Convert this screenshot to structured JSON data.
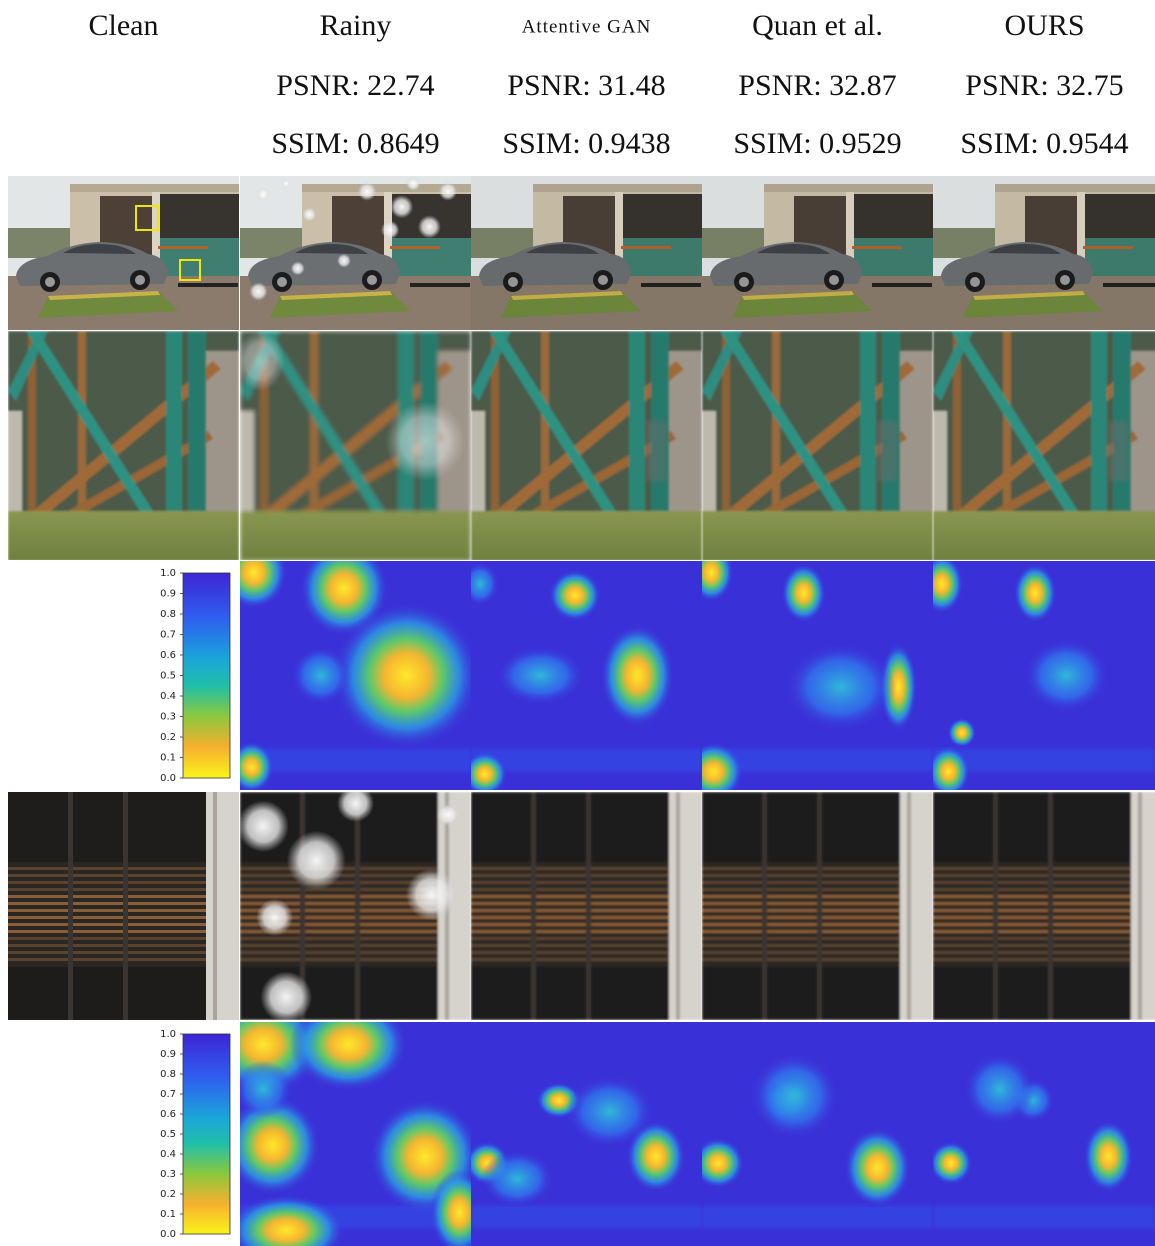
{
  "columns": [
    {
      "name": "Clean"
    },
    {
      "name": "Rainy",
      "psnr": "PSNR: 22.74",
      "ssim": "SSIM: 0.8649"
    },
    {
      "name": "Attentive GAN",
      "psnr": "PSNR: 31.48",
      "ssim": "SSIM: 0.9438"
    },
    {
      "name": "Quan et al.",
      "psnr": "PSNR: 32.87",
      "ssim": "SSIM: 0.9529"
    },
    {
      "name": "OURS",
      "psnr": "PSNR: 32.75",
      "ssim": "SSIM: 0.9544"
    }
  ],
  "colorbar": {
    "ticks": [
      {
        "value": 1,
        "label": "1.0"
      },
      0.9,
      0.8,
      0.7,
      0.6,
      0.5,
      0.4,
      0.3,
      0.2,
      0.1,
      {
        "value": 0,
        "label": "0.0"
      }
    ]
  }
}
